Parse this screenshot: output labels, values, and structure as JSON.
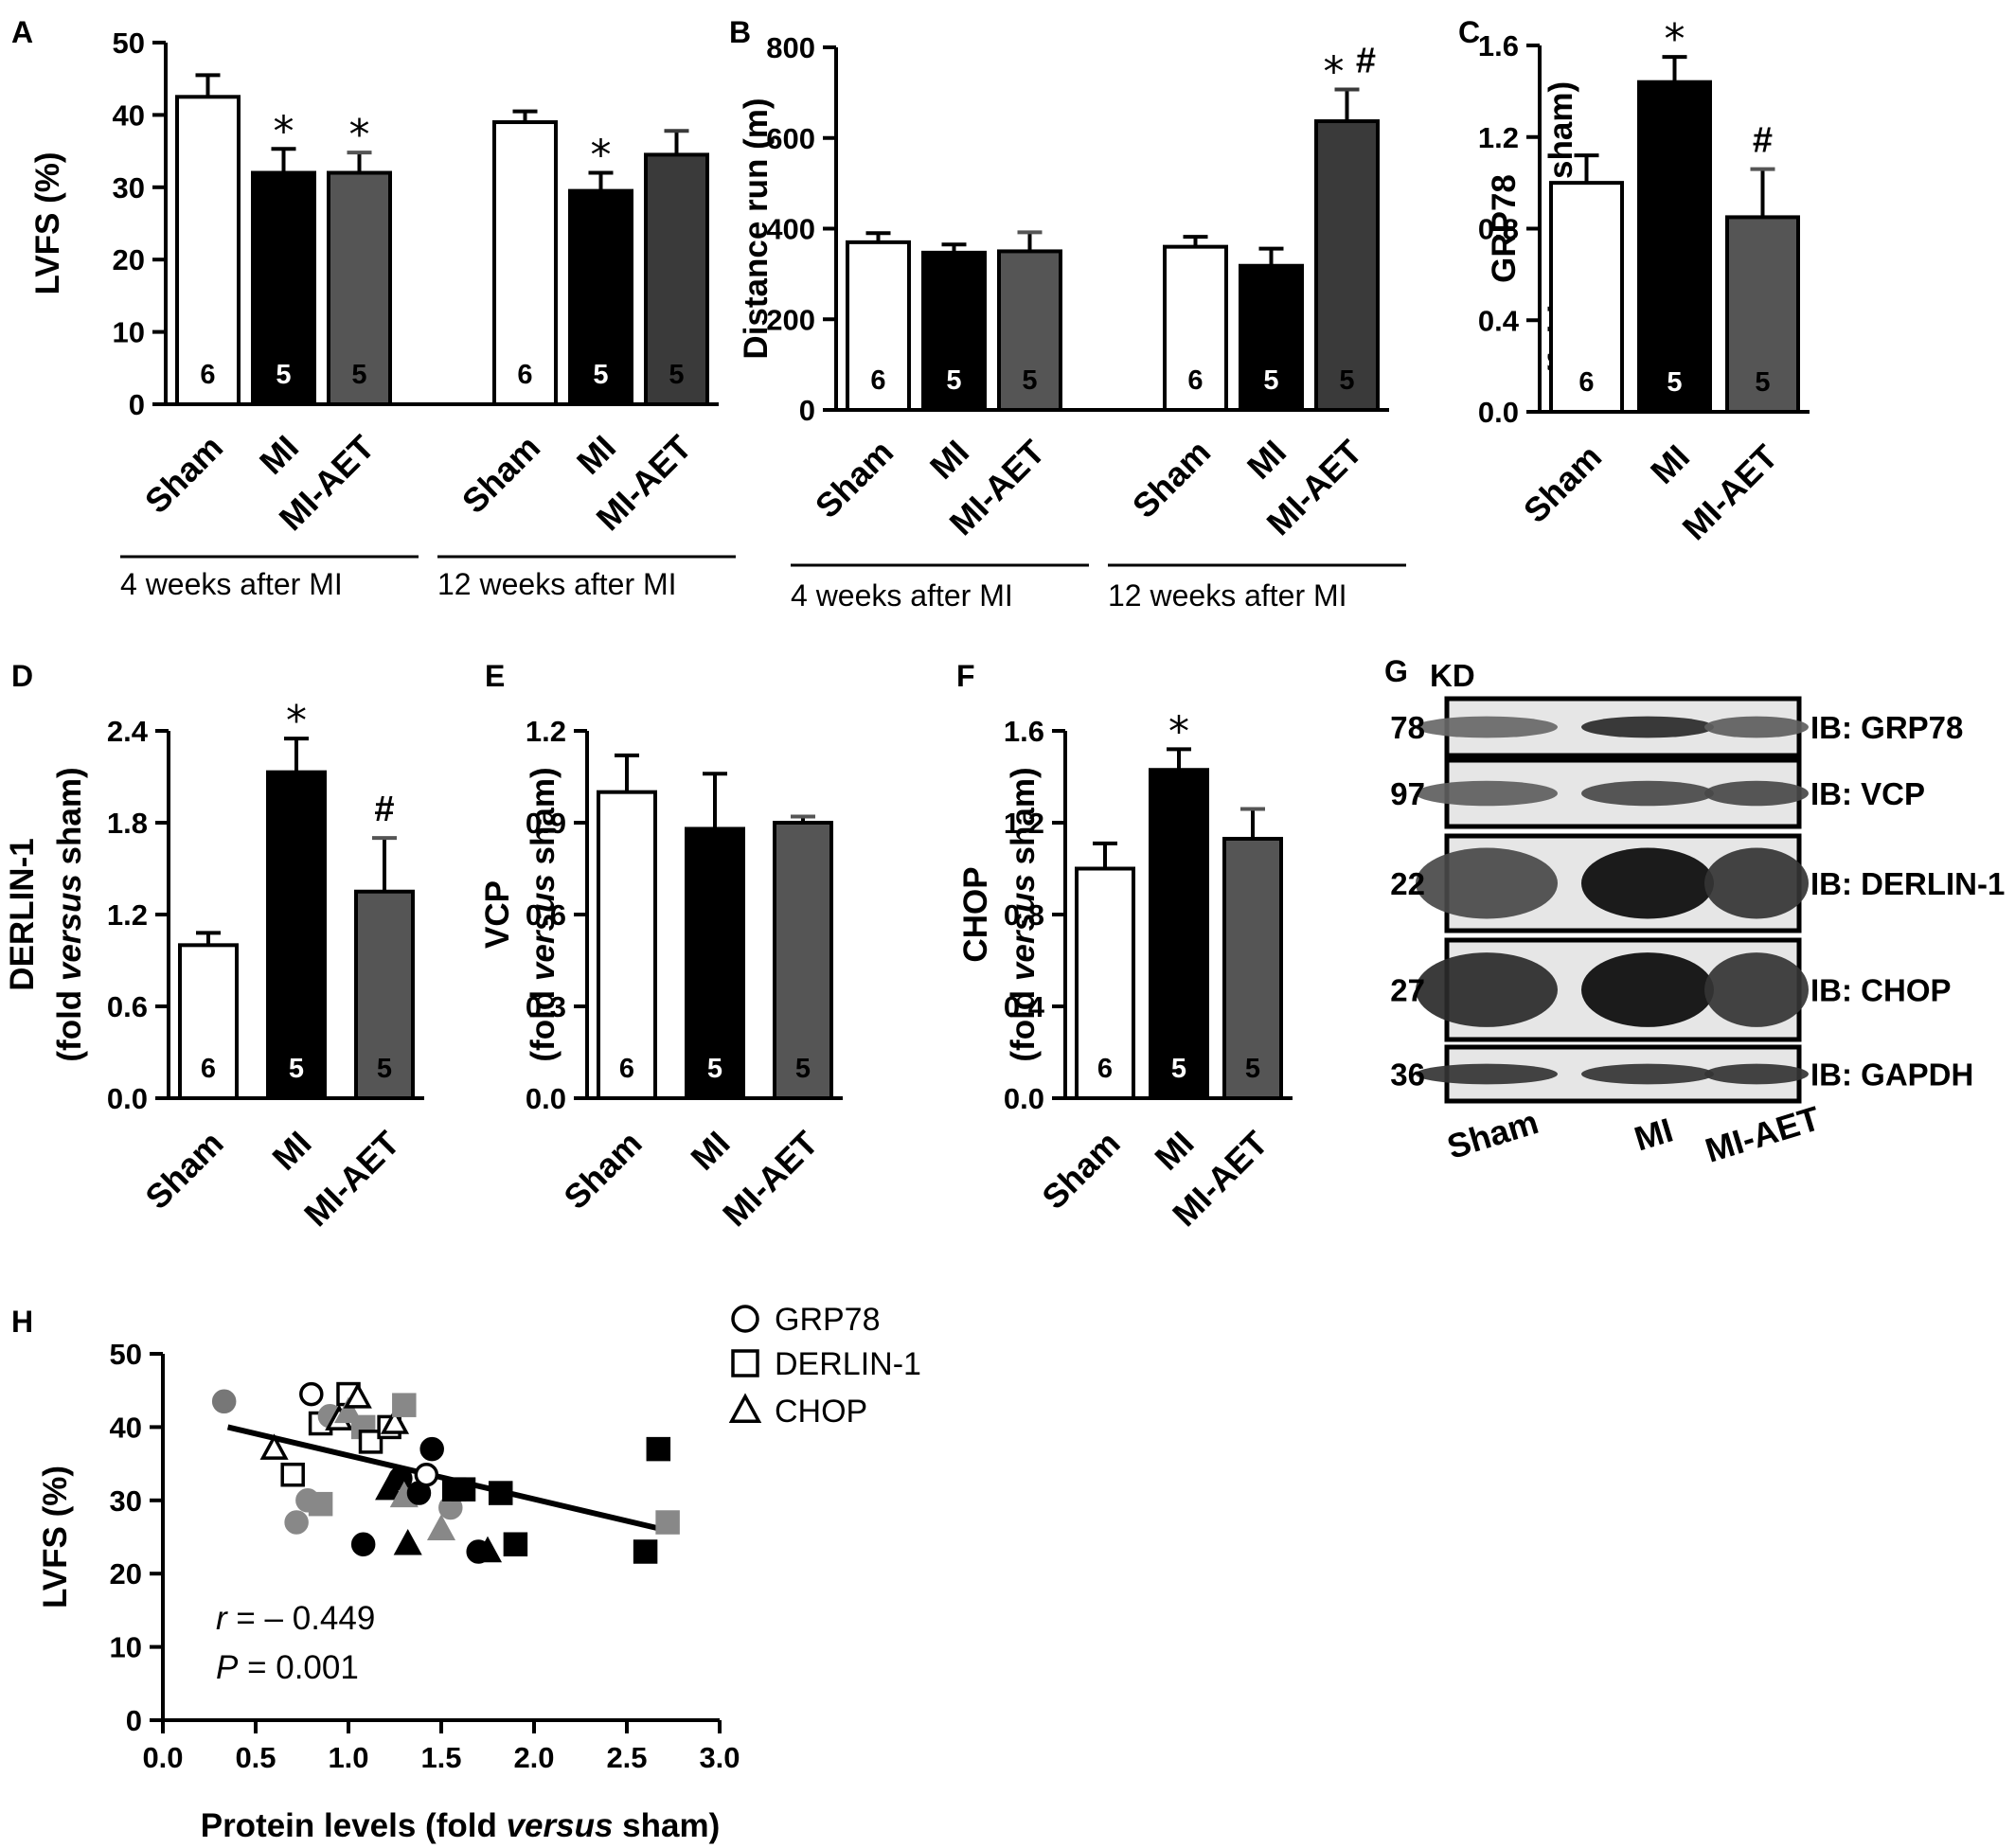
{
  "chart_data": [
    {
      "id": "A",
      "type": "bar",
      "panel_label": "A",
      "ylabel": "LVFS (%)",
      "ylim": [
        0,
        50
      ],
      "yticks": [
        0,
        10,
        20,
        30,
        40,
        50
      ],
      "ytick_decimals": 0,
      "groups": [
        {
          "label": "4 weeks after MI",
          "bars": [
            {
              "category": "Sham",
              "value": 42.5,
              "error": 3.0,
              "n": "6",
              "color": "#ffffff",
              "sig": ""
            },
            {
              "category": "MI",
              "value": 32.0,
              "error": 3.3,
              "n": "5",
              "color": "#000000",
              "sig": "*"
            },
            {
              "category": "MI-AET",
              "value": 32.0,
              "error": 2.8,
              "n": "5",
              "color": "#555555",
              "sig": "*"
            }
          ]
        },
        {
          "label": "12 weeks after MI",
          "bars": [
            {
              "category": "Sham",
              "value": 39.0,
              "error": 1.5,
              "n": "6",
              "color": "#ffffff",
              "sig": ""
            },
            {
              "category": "MI",
              "value": 29.5,
              "error": 2.5,
              "n": "5",
              "color": "#000000",
              "sig": "*"
            },
            {
              "category": "MI-AET",
              "value": 34.5,
              "error": 3.3,
              "n": "5",
              "color": "#3a3a3a",
              "sig": ""
            }
          ]
        }
      ]
    },
    {
      "id": "B",
      "type": "bar",
      "panel_label": "B",
      "ylabel": "Distance run (m)",
      "ylim": [
        0,
        800
      ],
      "yticks": [
        0,
        200,
        400,
        600,
        800
      ],
      "ytick_decimals": 0,
      "groups": [
        {
          "label": "4 weeks after MI",
          "bars": [
            {
              "category": "Sham",
              "value": 370,
              "error": 20,
              "n": "6",
              "color": "#ffffff",
              "sig": ""
            },
            {
              "category": "MI",
              "value": 347,
              "error": 18,
              "n": "5",
              "color": "#000000",
              "sig": ""
            },
            {
              "category": "MI-AET",
              "value": 350,
              "error": 42,
              "n": "5",
              "color": "#555555",
              "sig": ""
            }
          ]
        },
        {
          "label": "12 weeks after MI",
          "bars": [
            {
              "category": "Sham",
              "value": 360,
              "error": 22,
              "n": "6",
              "color": "#ffffff",
              "sig": ""
            },
            {
              "category": "MI",
              "value": 318,
              "error": 38,
              "n": "5",
              "color": "#000000",
              "sig": ""
            },
            {
              "category": "MI-AET",
              "value": 637,
              "error": 70,
              "n": "5",
              "color": "#3a3a3a",
              "sig": "* #"
            }
          ]
        }
      ]
    },
    {
      "id": "C",
      "type": "bar",
      "panel_label": "C",
      "ylabel": "GRP78",
      "ylabel2_pre": "(fold ",
      "ylabel2_it": "versus",
      "ylabel2_post": " sham)",
      "ylim": [
        0,
        1.6
      ],
      "yticks": [
        0.0,
        0.4,
        0.8,
        1.2,
        1.6
      ],
      "ytick_decimals": 1,
      "groups": [
        {
          "label": "",
          "bars": [
            {
              "category": "Sham",
              "value": 1.0,
              "error": 0.12,
              "n": "6",
              "color": "#ffffff",
              "sig": ""
            },
            {
              "category": "MI",
              "value": 1.44,
              "error": 0.11,
              "n": "5",
              "color": "#000000",
              "sig": "*"
            },
            {
              "category": "MI-AET",
              "value": 0.85,
              "error": 0.21,
              "n": "5",
              "color": "#555555",
              "sig": "#"
            }
          ]
        }
      ]
    },
    {
      "id": "D",
      "type": "bar",
      "panel_label": "D",
      "ylabel": "DERLIN-1",
      "ylabel2_pre": "(fold ",
      "ylabel2_it": "versus",
      "ylabel2_post": " sham)",
      "ylim": [
        0,
        2.4
      ],
      "yticks": [
        0.0,
        0.6,
        1.2,
        1.8,
        2.4
      ],
      "ytick_decimals": 1,
      "groups": [
        {
          "label": "",
          "bars": [
            {
              "category": "Sham",
              "value": 1.0,
              "error": 0.08,
              "n": "6",
              "color": "#ffffff",
              "sig": ""
            },
            {
              "category": "MI",
              "value": 2.13,
              "error": 0.22,
              "n": "5",
              "color": "#000000",
              "sig": "*"
            },
            {
              "category": "MI-AET",
              "value": 1.35,
              "error": 0.35,
              "n": "5",
              "color": "#555555",
              "sig": "#"
            }
          ]
        }
      ]
    },
    {
      "id": "E",
      "type": "bar",
      "panel_label": "E",
      "ylabel": "VCP",
      "ylabel2_pre": "(fold ",
      "ylabel2_it": "versus",
      "ylabel2_post": " sham)",
      "ylim": [
        0,
        1.2
      ],
      "yticks": [
        0.0,
        0.3,
        0.6,
        0.9,
        1.2
      ],
      "ytick_decimals": 1,
      "groups": [
        {
          "label": "",
          "bars": [
            {
              "category": "Sham",
              "value": 1.0,
              "error": 0.12,
              "n": "6",
              "color": "#ffffff",
              "sig": ""
            },
            {
              "category": "MI",
              "value": 0.88,
              "error": 0.18,
              "n": "5",
              "color": "#000000",
              "sig": ""
            },
            {
              "category": "MI-AET",
              "value": 0.9,
              "error": 0.02,
              "n": "5",
              "color": "#555555",
              "sig": ""
            }
          ]
        }
      ]
    },
    {
      "id": "F",
      "type": "bar",
      "panel_label": "F",
      "ylabel": "CHOP",
      "ylabel2_pre": "(fold ",
      "ylabel2_it": "versus",
      "ylabel2_post": " sham)",
      "ylim": [
        0,
        1.6
      ],
      "yticks": [
        0.0,
        0.4,
        0.8,
        1.2,
        1.6
      ],
      "ytick_decimals": 1,
      "groups": [
        {
          "label": "",
          "bars": [
            {
              "category": "Sham",
              "value": 1.0,
              "error": 0.11,
              "n": "6",
              "color": "#ffffff",
              "sig": ""
            },
            {
              "category": "MI",
              "value": 1.43,
              "error": 0.09,
              "n": "5",
              "color": "#000000",
              "sig": "*"
            },
            {
              "category": "MI-AET",
              "value": 1.13,
              "error": 0.13,
              "n": "5",
              "color": "#555555",
              "sig": ""
            }
          ]
        }
      ]
    },
    {
      "id": "H",
      "type": "scatter",
      "panel_label": "H",
      "xlabel_pre": "Protein levels (fold ",
      "xlabel_it": "versus",
      "xlabel_post": " sham)",
      "ylabel": "LVFS (%)",
      "xlim": [
        0,
        3.0
      ],
      "ylim": [
        0,
        50
      ],
      "xticks": [
        0.0,
        0.5,
        1.0,
        1.5,
        2.0,
        2.5,
        3.0
      ],
      "yticks": [
        0,
        10,
        20,
        30,
        40,
        50
      ],
      "legend": [
        {
          "marker": "circle",
          "label": "GRP78"
        },
        {
          "marker": "square",
          "label": "DERLIN-1"
        },
        {
          "marker": "triangle",
          "label": "CHOP"
        }
      ],
      "stats": {
        "r_label": "r",
        "r_value": " = – 0.449",
        "p_label": "P",
        "p_value": " = 0.001"
      },
      "fit": {
        "x": [
          0.35,
          2.7
        ],
        "y": [
          40.0,
          26.0
        ]
      },
      "points": [
        {
          "x": 0.33,
          "y": 43.5,
          "marker": "circle",
          "fill": "#777777"
        },
        {
          "x": 0.6,
          "y": 37.0,
          "marker": "triangle",
          "fill": "#ffffff"
        },
        {
          "x": 0.7,
          "y": 33.5,
          "marker": "square",
          "fill": "#ffffff"
        },
        {
          "x": 0.72,
          "y": 27.0,
          "marker": "circle",
          "fill": "#888888"
        },
        {
          "x": 0.78,
          "y": 30.0,
          "marker": "circle",
          "fill": "#888888"
        },
        {
          "x": 0.85,
          "y": 29.5,
          "marker": "square",
          "fill": "#888888"
        },
        {
          "x": 0.8,
          "y": 44.5,
          "marker": "circle",
          "fill": "#ffffff"
        },
        {
          "x": 0.85,
          "y": 40.5,
          "marker": "square",
          "fill": "#ffffff"
        },
        {
          "x": 0.9,
          "y": 41.5,
          "marker": "circle",
          "fill": "#888888"
        },
        {
          "x": 0.95,
          "y": 41.0,
          "marker": "triangle",
          "fill": "#ffffff"
        },
        {
          "x": 1.0,
          "y": 44.5,
          "marker": "square",
          "fill": "#ffffff"
        },
        {
          "x": 1.0,
          "y": 42.0,
          "marker": "triangle",
          "fill": "#888888"
        },
        {
          "x": 1.05,
          "y": 44.0,
          "marker": "triangle",
          "fill": "#ffffff"
        },
        {
          "x": 1.08,
          "y": 40.0,
          "marker": "square",
          "fill": "#888888"
        },
        {
          "x": 1.08,
          "y": 24.0,
          "marker": "circle",
          "fill": "#000000"
        },
        {
          "x": 1.12,
          "y": 38.0,
          "marker": "square",
          "fill": "#ffffff"
        },
        {
          "x": 1.22,
          "y": 40.0,
          "marker": "square",
          "fill": "#ffffff"
        },
        {
          "x": 1.25,
          "y": 40.5,
          "marker": "triangle",
          "fill": "#ffffff"
        },
        {
          "x": 1.22,
          "y": 31.5,
          "marker": "triangle",
          "fill": "#000000"
        },
        {
          "x": 1.28,
          "y": 33.0,
          "marker": "circle",
          "fill": "#000000"
        },
        {
          "x": 1.3,
          "y": 43.0,
          "marker": "square",
          "fill": "#888888"
        },
        {
          "x": 1.3,
          "y": 30.5,
          "marker": "triangle",
          "fill": "#888888"
        },
        {
          "x": 1.32,
          "y": 24.0,
          "marker": "triangle",
          "fill": "#000000"
        },
        {
          "x": 1.38,
          "y": 31.0,
          "marker": "circle",
          "fill": "#000000"
        },
        {
          "x": 1.42,
          "y": 33.5,
          "marker": "circle",
          "fill": "#ffffff"
        },
        {
          "x": 1.45,
          "y": 37.0,
          "marker": "circle",
          "fill": "#000000"
        },
        {
          "x": 1.5,
          "y": 26.0,
          "marker": "triangle",
          "fill": "#888888"
        },
        {
          "x": 1.55,
          "y": 29.0,
          "marker": "circle",
          "fill": "#888888"
        },
        {
          "x": 1.57,
          "y": 31.5,
          "marker": "square",
          "fill": "#000000"
        },
        {
          "x": 1.62,
          "y": 31.5,
          "marker": "square",
          "fill": "#000000"
        },
        {
          "x": 1.7,
          "y": 23.0,
          "marker": "circle",
          "fill": "#000000"
        },
        {
          "x": 1.75,
          "y": 23.0,
          "marker": "triangle",
          "fill": "#000000"
        },
        {
          "x": 1.82,
          "y": 31.0,
          "marker": "square",
          "fill": "#000000"
        },
        {
          "x": 1.9,
          "y": 24.0,
          "marker": "square",
          "fill": "#000000"
        },
        {
          "x": 2.6,
          "y": 23.0,
          "marker": "square",
          "fill": "#000000"
        },
        {
          "x": 2.67,
          "y": 37.0,
          "marker": "square",
          "fill": "#000000"
        },
        {
          "x": 2.72,
          "y": 27.0,
          "marker": "square",
          "fill": "#888888"
        }
      ]
    }
  ],
  "blot": {
    "panel_label": "G",
    "kd_label": "KD",
    "lanes": [
      "Sham",
      "MI",
      "MI-AET"
    ],
    "rows": [
      {
        "kd": "78",
        "label": "IB: GRP78",
        "intensity": [
          0.55,
          0.85,
          0.6
        ]
      },
      {
        "kd": "97",
        "label": "IB: VCP",
        "intensity": [
          0.6,
          0.7,
          0.7
        ]
      },
      {
        "kd": "22",
        "label": "IB: DERLIN-1",
        "intensity": [
          0.7,
          1.0,
          0.8
        ]
      },
      {
        "kd": "27",
        "label": "IB: CHOP",
        "intensity": [
          0.85,
          1.0,
          0.8
        ]
      },
      {
        "kd": "36",
        "label": "IB: GAPDH",
        "intensity": [
          0.8,
          0.8,
          0.8
        ]
      }
    ]
  }
}
